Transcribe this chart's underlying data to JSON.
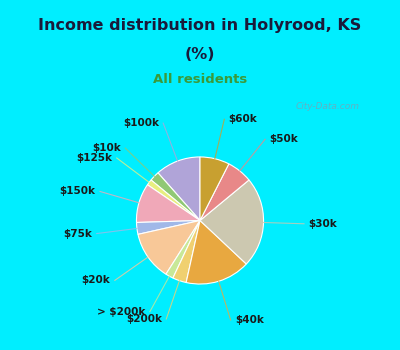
{
  "title_line1": "Income distribution in Holyrood, KS",
  "title_line2": "(%)",
  "subtitle": "All residents",
  "labels": [
    "$100k",
    "$10k",
    "$125k",
    "$150k",
    "$75k",
    "$20k",
    "> $200k",
    "$200k",
    "$40k",
    "$30k",
    "$50k",
    "$60k"
  ],
  "sizes": [
    11.5,
    2.5,
    1.5,
    10.0,
    3.0,
    12.5,
    2.0,
    3.5,
    16.5,
    23.0,
    6.5,
    7.5
  ],
  "colors": [
    "#b0a4d8",
    "#90c875",
    "#e8ee80",
    "#f0a8b8",
    "#a0b8e8",
    "#f8c898",
    "#c8e898",
    "#f0d070",
    "#e8a840",
    "#ccc8b0",
    "#e88888",
    "#c8a030"
  ],
  "bg_color_top": "#00eeff",
  "pie_bg_top_left": "#c8e8c8",
  "pie_bg_center": "#e8f8f0",
  "pie_bg_right": "#d8f0f8",
  "title_color": "#1a1a3a",
  "subtitle_color": "#3a9a3a",
  "label_color": "#1a1a1a",
  "watermark": "City-Data.com",
  "start_angle": 90,
  "label_fontsize": 7.5,
  "title_fontsize": 11.5,
  "subtitle_fontsize": 9.5
}
